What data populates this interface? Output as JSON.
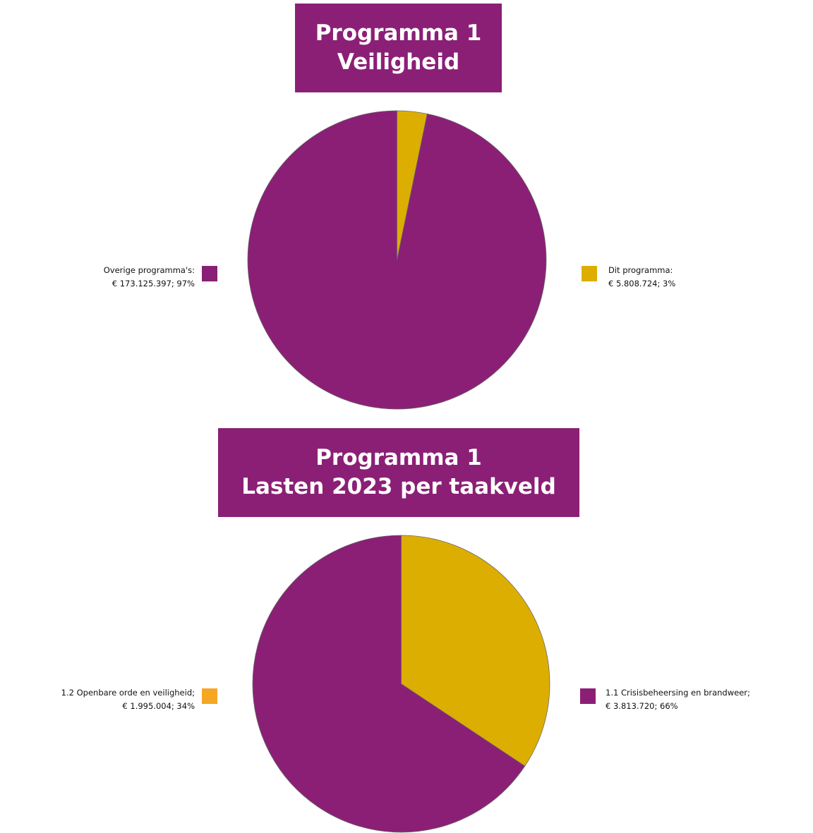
{
  "charts": [
    {
      "title_lines": [
        "Programma 1",
        "Veiligheid"
      ]
    },
    {
      "title_lines": [
        "Programma 1",
        "Lasten 2023 per taakveld"
      ]
    }
  ],
  "chart_data": [
    {
      "type": "pie",
      "title": "Programma 1 Veiligheid",
      "slices": [
        {
          "label": "Dit programma",
          "value": 5808724,
          "percent": 3,
          "color": "#DDAE02",
          "legend_line1": "Dit programma:",
          "legend_line2": "€ 5.808.724; 3%"
        },
        {
          "label": "Overige programma's",
          "value": 173125397,
          "percent": 97,
          "color": "#8B1F76",
          "legend_line1": "Overige programma's:",
          "legend_line2": "€ 173.125.397; 97%"
        }
      ]
    },
    {
      "type": "pie",
      "title": "Programma 1 Lasten 2023 per taakveld",
      "slices": [
        {
          "label": "1.2 Openbare orde en veiligheid",
          "value": 1995004,
          "percent": 34,
          "color": "#DDAE02",
          "legend_swatch_color": "#F5A623",
          "legend_line1": "1.2 Openbare orde en veiligheid;",
          "legend_line2": "€ 1.995.004; 34%"
        },
        {
          "label": "1.1 Crisisbeheersing en brandweer",
          "value": 3813720,
          "percent": 66,
          "color": "#8B1F76",
          "legend_line1": "1.1 Crisisbeheersing en brandweer;",
          "legend_line2": "€ 3.813.720; 66%"
        }
      ]
    }
  ]
}
